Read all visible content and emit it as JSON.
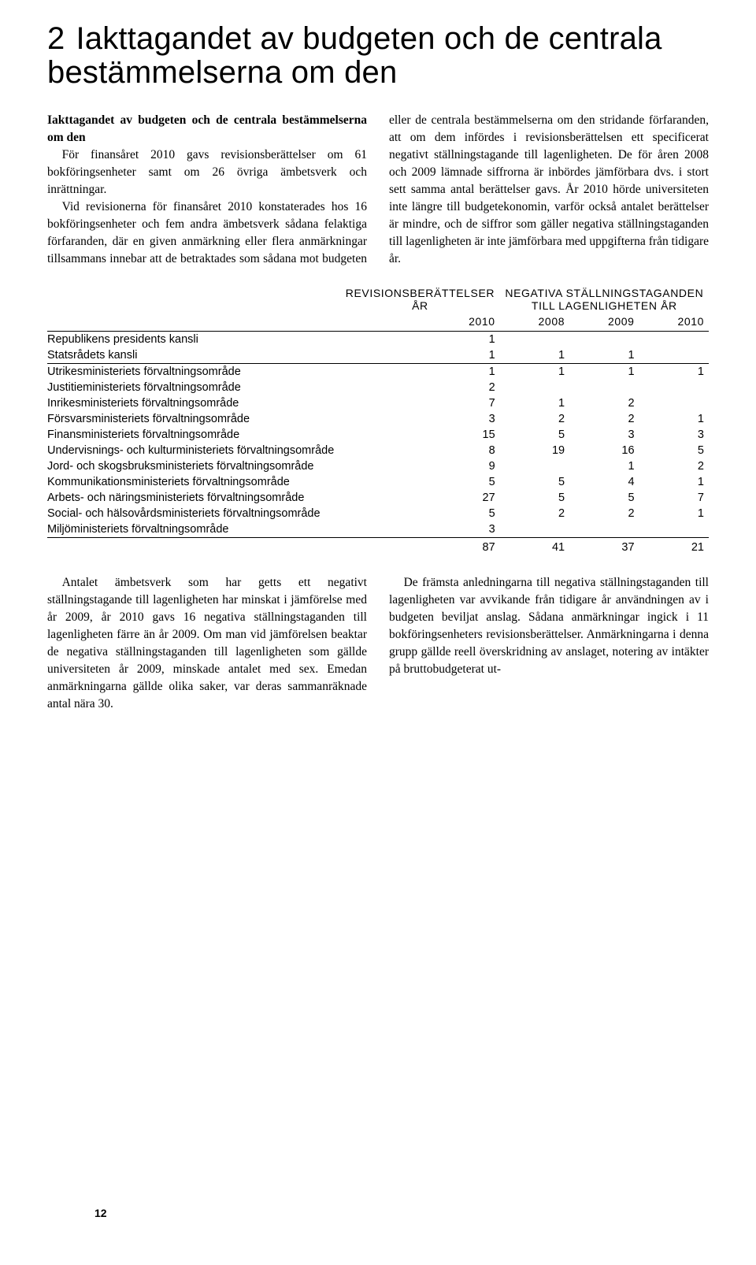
{
  "chapter": {
    "number": "2",
    "title": "Iakttagandet av budgeten och de centrala bestämmelserna om den"
  },
  "body1": {
    "subhead": "Iakttagandet av budgeten och de centrala bestämmelserna om den",
    "p1": "För finansåret 2010 gavs revisionsberättelser om 61 bokföringsenheter samt om 26 övriga ämbetsverk och inrättningar.",
    "p2": "Vid revisionerna för finansåret 2010 konstaterades hos 16 bokföringsenheter och fem andra ämbetsverk sådana felaktiga förfaranden, där en given anmärkning eller flera anmärkningar tillsammans innebar att de betraktades som sådana mot budgeten eller de centrala bestämmelserna om den stridande förfaranden, att om dem infördes i revisionsberättelsen ett specificerat negativt ställningstagande till lagenligheten. De för åren 2008 och 2009 lämnade siffrorna är inbördes jämförbara dvs. i stort sett samma antal berättelser gavs. År 2010 hörde universiteten inte längre till budgetekonomin, varför också antalet berättelser är mindre, och de siffror som gäller negativa ställningstaganden till lagenligheten är inte jämförbara med uppgifterna från tidigare år."
  },
  "table": {
    "head_group1_line1": "REVISIONSBERÄTTELSER",
    "head_group1_line2": "ÅR",
    "head_group2_line1": "NEGATIVA STÄLLNINGSTAGANDEN",
    "head_group2_line2": "TILL LAGENLIGHETEN ÅR",
    "years": [
      "2010",
      "2008",
      "2009",
      "2010"
    ],
    "rows": [
      {
        "label": "Republikens presidents kansli",
        "v": [
          "1",
          "",
          "",
          ""
        ]
      },
      {
        "label": "Statsrådets kansli",
        "v": [
          "1",
          "1",
          "1",
          ""
        ]
      },
      {
        "label": "Utrikesministeriets förvaltningsområde",
        "v": [
          "1",
          "1",
          "1",
          "1"
        ]
      },
      {
        "label": "Justitieministeriets förvaltningsområde",
        "v": [
          "2",
          "",
          "",
          ""
        ]
      },
      {
        "label": "Inrikesministeriets förvaltningsområde",
        "v": [
          "7",
          "1",
          "2",
          ""
        ]
      },
      {
        "label": "Försvarsministeriets förvaltningsområde",
        "v": [
          "3",
          "2",
          "2",
          "1"
        ]
      },
      {
        "label": "Finansministeriets förvaltningsområde",
        "v": [
          "15",
          "5",
          "3",
          "3"
        ]
      },
      {
        "label": "Undervisnings- och kulturministeriets förvaltningsområde",
        "v": [
          "8",
          "19",
          "16",
          "5"
        ]
      },
      {
        "label": "Jord- och skogsbruksministeriets förvaltningsområde",
        "v": [
          "9",
          "",
          "1",
          "2"
        ]
      },
      {
        "label": "Kommunikationsministeriets förvaltningsområde",
        "v": [
          "5",
          "5",
          "4",
          "1"
        ]
      },
      {
        "label": "Arbets- och näringsministeriets förvaltningsområde",
        "v": [
          "27",
          "5",
          "5",
          "7"
        ]
      },
      {
        "label": "Social- och hälsovårdsministeriets förvaltningsområde",
        "v": [
          "5",
          "2",
          "2",
          "1"
        ]
      },
      {
        "label": "Miljöministeriets förvaltningsområde",
        "v": [
          "3",
          "",
          "",
          ""
        ]
      }
    ],
    "totals": [
      "87",
      "41",
      "37",
      "21"
    ]
  },
  "body2": {
    "p1": "Antalet ämbetsverk som har getts ett negativt ställningstagande till lagenligheten har minskat i jämförelse med år 2009, år 2010 gavs 16 negativa ställningstaganden till lagenligheten färre än år 2009. Om man vid jämförelsen beaktar de negativa ställningstaganden till lagenligheten som gällde universiteten år 2009, minskade antalet med sex. Emedan anmärkningarna gällde olika saker, var deras sammanräknade antal nära 30.",
    "p2": "De främsta anledningarna till negativa ställningstaganden till lagenligheten var avvikande från tidigare år användningen av i budgeten beviljat anslag. Sådana anmärkningar ingick i 11 bokföringsenheters revisionsberättelser. Anmärkningarna i denna grupp gällde reell överskridning av anslaget, notering av intäkter på bruttobudgeterat ut-"
  },
  "page_number": "12"
}
